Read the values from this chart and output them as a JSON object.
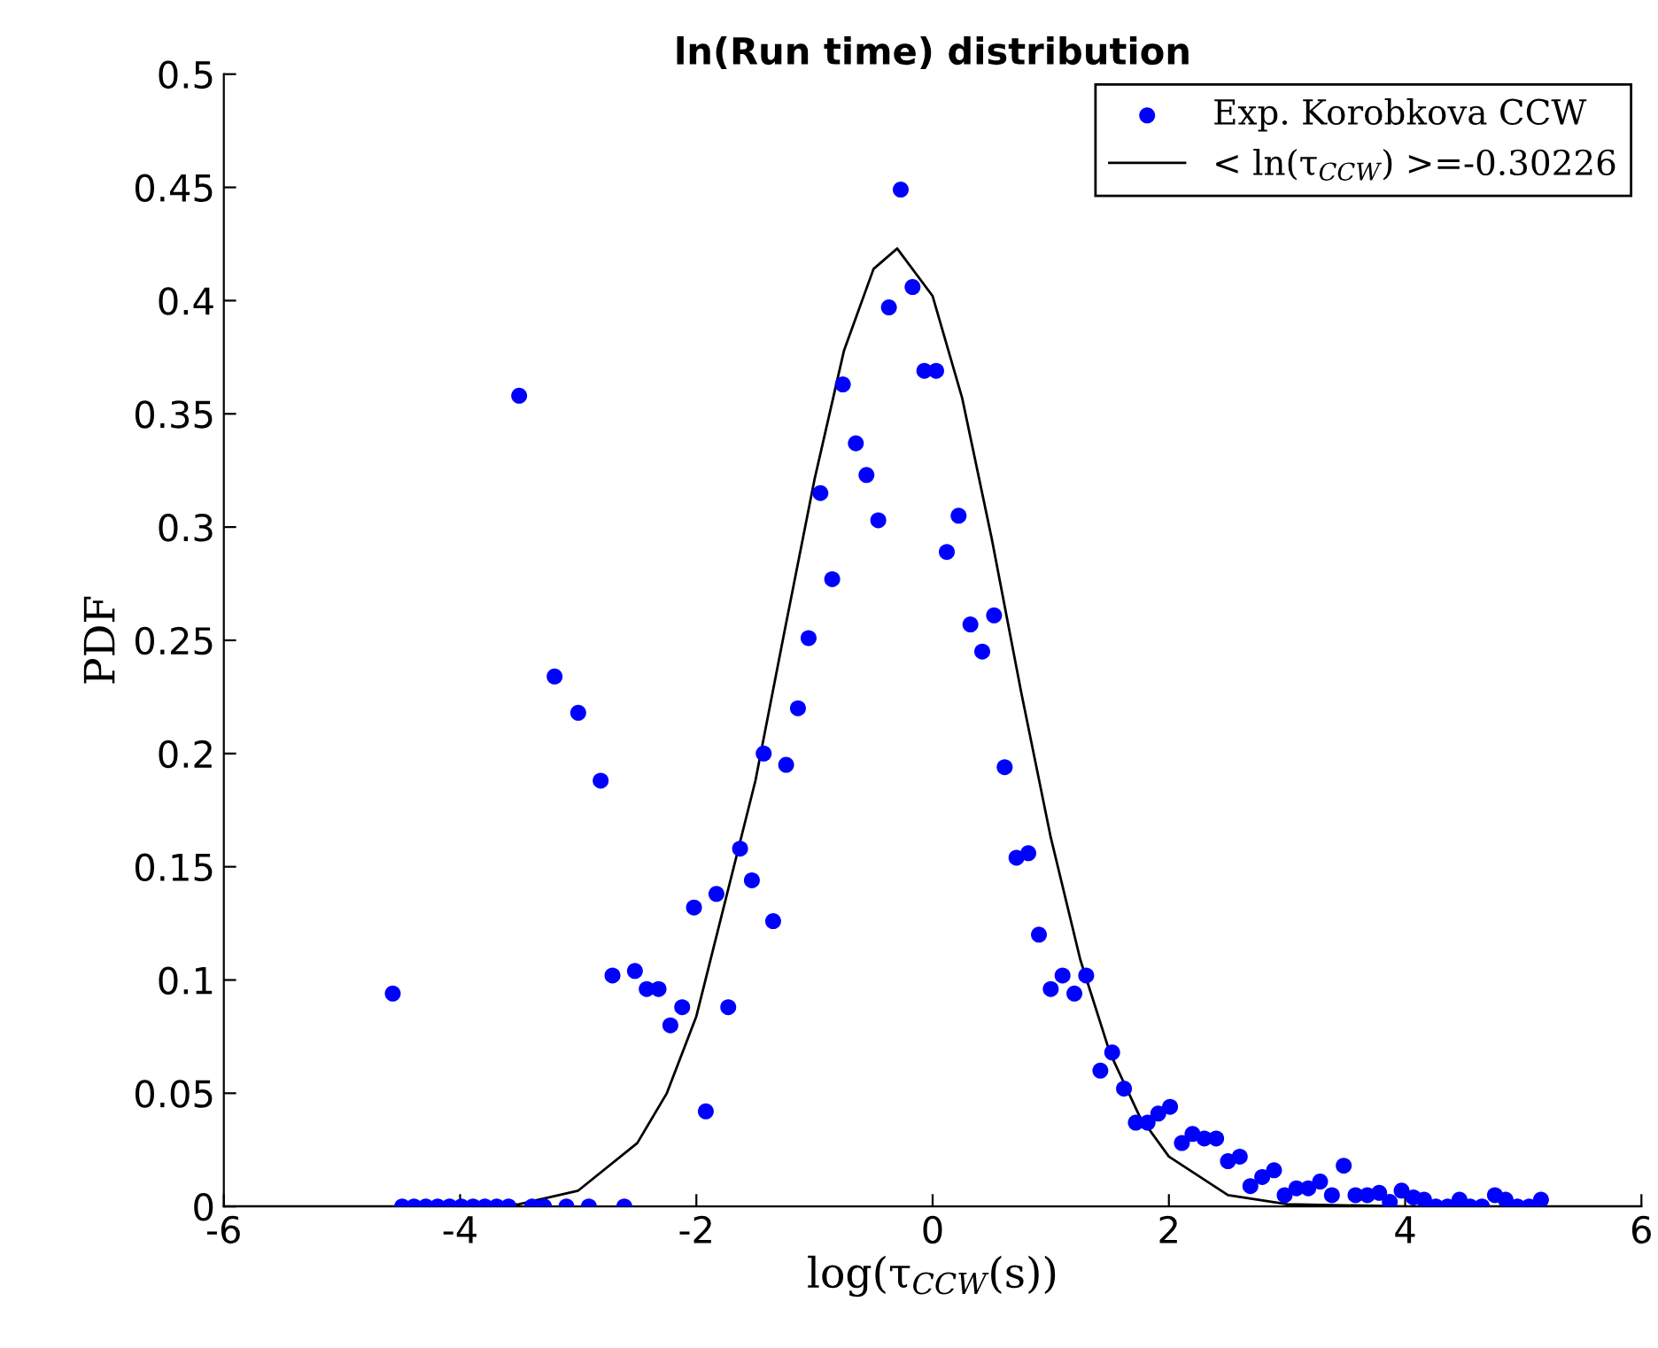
{
  "chart_data": {
    "type": "scatter",
    "title": "ln(Run time) distribution",
    "xlabel": "log(τ$_{CCW}$(s))",
    "ylabel": "PDF",
    "xlim": [
      -6,
      6
    ],
    "xticks": [
      -6,
      -4,
      -2,
      0,
      2,
      4,
      6
    ],
    "ylim": [
      0,
      0.5
    ],
    "yticks": [
      0,
      0.05,
      0.1,
      0.15,
      0.2,
      0.25,
      0.3,
      0.35,
      0.4,
      0.45,
      0.5
    ],
    "grid": false,
    "legend": "top right",
    "marker": "circle",
    "series": [
      {
        "name": "Exp. Korobkova CCW",
        "color": "#0000ff",
        "x": [
          -4.57,
          -4.49,
          -4.39,
          -4.29,
          -4.19,
          -4.09,
          -3.99,
          -3.89,
          -3.79,
          -3.69,
          -3.59,
          -3.5,
          -3.39,
          -3.29,
          -3.2,
          -3.1,
          -3.0,
          -2.91,
          -2.81,
          -2.71,
          -2.61,
          -2.52,
          -2.42,
          -2.32,
          -2.22,
          -2.12,
          -2.02,
          -1.92,
          -1.83,
          -1.73,
          -1.63,
          -1.53,
          -1.43,
          -1.35,
          -1.24,
          -1.14,
          -1.05,
          -0.95,
          -0.85,
          -0.76,
          -0.65,
          -0.56,
          -0.46,
          -0.37,
          -0.27,
          -0.17,
          -0.07,
          0.03,
          0.12,
          0.22,
          0.32,
          0.42,
          0.52,
          0.61,
          0.71,
          0.81,
          0.9,
          1.0,
          1.1,
          1.2,
          1.3,
          1.42,
          1.52,
          1.62,
          1.72,
          1.82,
          1.91,
          2.01,
          2.11,
          2.2,
          2.3,
          2.4,
          2.5,
          2.6,
          2.69,
          2.79,
          2.89,
          2.98,
          3.08,
          3.18,
          3.28,
          3.38,
          3.48,
          3.58,
          3.68,
          3.78,
          3.87,
          3.97,
          4.07,
          4.16,
          4.26,
          4.36,
          4.46,
          4.55,
          4.65,
          4.76,
          4.85,
          4.95,
          5.05,
          5.15
        ],
        "values": [
          0.094,
          0,
          0,
          0,
          0,
          0,
          0,
          0,
          0,
          0,
          0,
          0.358,
          0,
          0,
          0.234,
          0,
          0.218,
          0,
          0.188,
          0.102,
          0,
          0.104,
          0.096,
          0.096,
          0.08,
          0.088,
          0.132,
          0.042,
          0.138,
          0.088,
          0.158,
          0.144,
          0.2,
          0.126,
          0.195,
          0.22,
          0.251,
          0.315,
          0.277,
          0.363,
          0.337,
          0.323,
          0.303,
          0.397,
          0.449,
          0.406,
          0.369,
          0.369,
          0.289,
          0.305,
          0.257,
          0.245,
          0.261,
          0.194,
          0.154,
          0.156,
          0.12,
          0.096,
          0.102,
          0.094,
          0.102,
          0.06,
          0.068,
          0.052,
          0.037,
          0.037,
          0.041,
          0.044,
          0.028,
          0.032,
          0.03,
          0.03,
          0.02,
          0.022,
          0.009,
          0.013,
          0.016,
          0.005,
          0.008,
          0.008,
          0.011,
          0.005,
          0.018,
          0.005,
          0.005,
          0.006,
          0.002,
          0.007,
          0.004,
          0.003,
          0,
          0,
          0.003,
          0,
          0,
          0.005,
          0.003,
          0,
          0,
          0.003
        ]
      },
      {
        "name": "< ln(τ$_{CCW}$) >=-0.30226",
        "type": "line",
        "color": "#000000",
        "marker": "none",
        "line_style": "solid",
        "x": [
          -6,
          -4,
          -3.5,
          -3,
          -2.5,
          -2.25,
          -2,
          -1.5,
          -1.25,
          -1,
          -0.75,
          -0.5,
          -0.3,
          0,
          0.25,
          0.5,
          0.75,
          1,
          1.25,
          1.5,
          1.75,
          2,
          2.5,
          3,
          4,
          6
        ],
        "values": [
          0,
          0,
          0.001,
          0.007,
          0.028,
          0.05,
          0.084,
          0.188,
          0.255,
          0.321,
          0.378,
          0.414,
          0.423,
          0.402,
          0.357,
          0.295,
          0.227,
          0.163,
          0.109,
          0.068,
          0.04,
          0.022,
          0.005,
          0.001,
          0,
          0
        ]
      }
    ]
  }
}
